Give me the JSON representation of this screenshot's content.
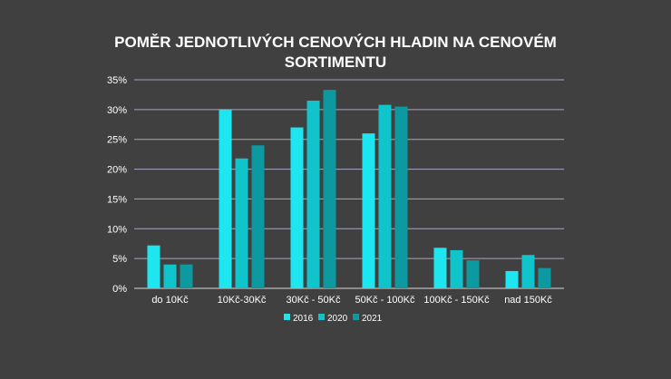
{
  "chart_data": {
    "type": "bar",
    "title_line1": "POMĚR JEDNOTLIVÝCH CENOVÝCH HLADIN NA CENOVÉM",
    "title_line2": "SORTIMENTU",
    "categories": [
      "do 10Kč",
      "10Kč-30Kč",
      "30Kč - 50Kč",
      "50Kč - 100Kč",
      "100Kč - 150Kč",
      "nad 150Kč"
    ],
    "series": [
      {
        "name": "2016",
        "color": "#1ee6f0",
        "values": [
          7.2,
          30.0,
          27.0,
          26.0,
          6.8,
          2.9
        ]
      },
      {
        "name": "2020",
        "color": "#10c4cc",
        "values": [
          4.0,
          21.8,
          31.5,
          30.8,
          6.4,
          5.6
        ]
      },
      {
        "name": "2021",
        "color": "#0c9aa0",
        "values": [
          4.0,
          24.0,
          33.3,
          30.5,
          4.7,
          3.4
        ]
      }
    ],
    "y_ticks": [
      "0%",
      "5%",
      "10%",
      "15%",
      "20%",
      "25%",
      "30%",
      "35%"
    ],
    "ylim": [
      0,
      35
    ],
    "grid": true,
    "legend_position": "bottom"
  },
  "colors": {
    "background": "#404040",
    "gridline": "#a6a6c0",
    "text": "#ffffff"
  }
}
